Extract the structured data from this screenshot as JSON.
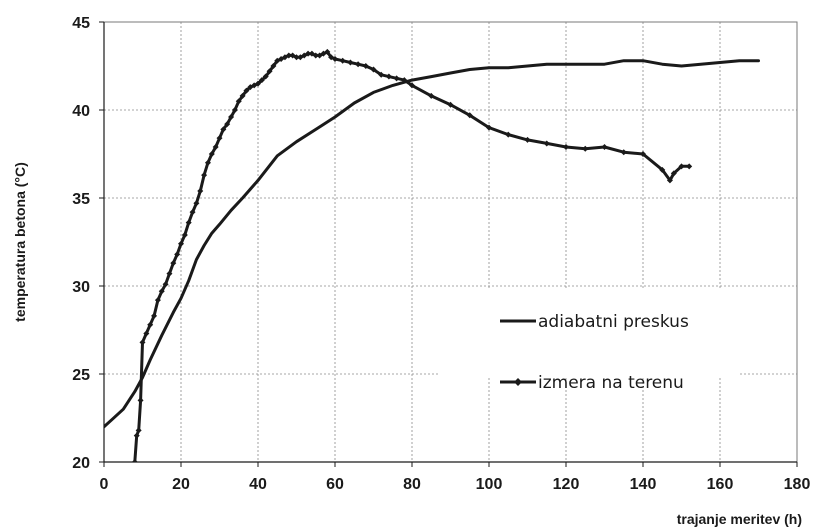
{
  "chart_data": {
    "type": "line",
    "xlabel": "trajanje meritev (h)",
    "ylabel": "temperatura betona (°C)",
    "xlim": [
      0,
      180
    ],
    "ylim": [
      20,
      45
    ],
    "xticks": [
      0,
      20,
      40,
      60,
      80,
      100,
      120,
      140,
      160,
      180
    ],
    "yticks": [
      20,
      25,
      30,
      35,
      40,
      45
    ],
    "grid": "dashed",
    "legend_position": "lower-right",
    "series": [
      {
        "name": "adiabatni preskus",
        "marker": "none",
        "color": "#1a1a1a",
        "x": [
          0,
          2,
          5,
          8,
          10,
          12,
          15,
          18,
          20,
          22,
          24,
          26,
          28,
          30,
          33,
          36,
          40,
          45,
          50,
          55,
          60,
          65,
          70,
          75,
          80,
          85,
          90,
          95,
          100,
          105,
          110,
          115,
          120,
          125,
          130,
          135,
          140,
          145,
          150,
          155,
          160,
          165,
          170
        ],
        "y": [
          22.0,
          22.4,
          23.0,
          24.0,
          24.8,
          25.8,
          27.2,
          28.5,
          29.3,
          30.3,
          31.5,
          32.3,
          33.0,
          33.5,
          34.3,
          35.0,
          36.0,
          37.4,
          38.2,
          38.9,
          39.6,
          40.4,
          41.0,
          41.4,
          41.7,
          41.9,
          42.1,
          42.3,
          42.4,
          42.4,
          42.5,
          42.6,
          42.6,
          42.6,
          42.6,
          42.8,
          42.8,
          42.6,
          42.5,
          42.6,
          42.7,
          42.8,
          42.8
        ]
      },
      {
        "name": "izmera na terenu",
        "marker": "small-diamond",
        "color": "#1a1a1a",
        "x": [
          8,
          8.5,
          9,
          9.5,
          10,
          11,
          12,
          13,
          14,
          15,
          16,
          17,
          18,
          19,
          20,
          21,
          22,
          23,
          24,
          25,
          26,
          27,
          28,
          29,
          30,
          31,
          32,
          33,
          34,
          35,
          36,
          37,
          38,
          39,
          40,
          41,
          42,
          43,
          44,
          45,
          46,
          47,
          48,
          49,
          50,
          51,
          52,
          53,
          54,
          55,
          56,
          57,
          58,
          59,
          60,
          62,
          64,
          66,
          68,
          70,
          72,
          74,
          76,
          78,
          80,
          85,
          90,
          95,
          100,
          105,
          110,
          115,
          120,
          125,
          130,
          135,
          140,
          145,
          147,
          148,
          150,
          152
        ],
        "y": [
          20.0,
          21.5,
          21.8,
          23.5,
          26.8,
          27.3,
          27.8,
          28.3,
          29.2,
          29.7,
          30.1,
          30.7,
          31.3,
          31.8,
          32.4,
          32.9,
          33.6,
          34.2,
          34.7,
          35.4,
          36.3,
          37.0,
          37.5,
          37.9,
          38.4,
          38.9,
          39.2,
          39.6,
          40.0,
          40.5,
          40.8,
          41.1,
          41.3,
          41.4,
          41.5,
          41.7,
          41.9,
          42.2,
          42.5,
          42.8,
          42.9,
          43.0,
          43.1,
          43.1,
          43.0,
          43.0,
          43.1,
          43.2,
          43.2,
          43.1,
          43.1,
          43.2,
          43.3,
          43.0,
          42.9,
          42.8,
          42.7,
          42.6,
          42.5,
          42.3,
          42.0,
          41.9,
          41.8,
          41.7,
          41.4,
          40.8,
          40.3,
          39.7,
          39.0,
          38.6,
          38.3,
          38.1,
          37.9,
          37.8,
          37.9,
          37.6,
          37.5,
          36.6,
          36.0,
          36.4,
          36.8,
          36.8
        ]
      }
    ]
  }
}
